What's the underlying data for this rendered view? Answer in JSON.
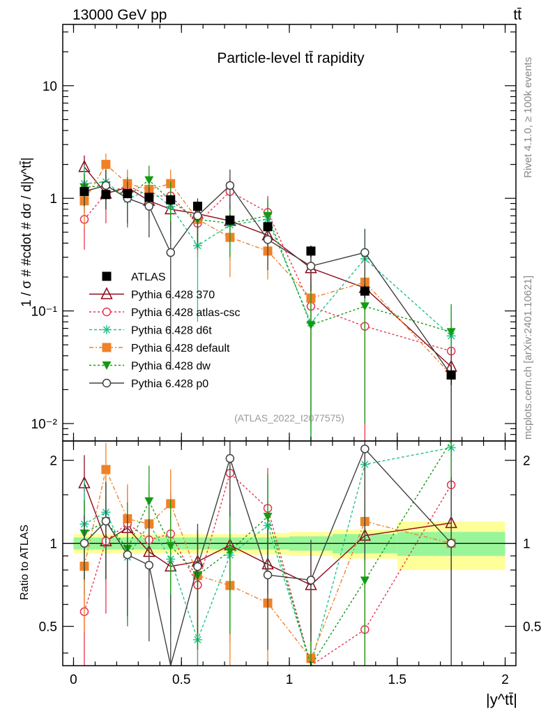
{
  "header": {
    "energy_label": "13000 GeV pp",
    "process_label": "tt̄",
    "rivet_label": "Rivet 4.1.0, ≥ 100k events",
    "source_label": "mcplots.cern.ch [arXiv:2401.10621]"
  },
  "chart_data": {
    "type": "scatter",
    "title": "Particle-level tt̄ rapidity",
    "analysis_label": "(ATLAS_2022_I2077575)",
    "xlabel": "|y^tt̄|",
    "ylabel": "1 / σ # #cdot # dσ / d|y^tt̄|",
    "ratio_ylabel": "Ratio to ATLAS",
    "xlim": [
      -0.05,
      2.05
    ],
    "ylim": [
      0.007,
      35
    ],
    "ratio_ylim": [
      0.36,
      2.35
    ],
    "x_ticks": [
      0,
      0.5,
      1,
      1.5,
      2
    ],
    "x_tick_labels": [
      "0",
      "0.5",
      "1",
      "1.5",
      "2"
    ],
    "y_ticks": [
      0.01,
      0.1,
      1,
      10
    ],
    "y_tick_labels": [
      "10⁻²",
      "10⁻¹",
      "1",
      "10"
    ],
    "ratio_ticks": [
      0.5,
      1,
      2
    ],
    "ratio_tick_labels": [
      "0.5",
      "1",
      "2"
    ],
    "bins": [
      [
        0,
        0.1
      ],
      [
        0.1,
        0.2
      ],
      [
        0.2,
        0.3
      ],
      [
        0.3,
        0.4
      ],
      [
        0.4,
        0.5
      ],
      [
        0.5,
        0.65
      ],
      [
        0.65,
        0.8
      ],
      [
        0.8,
        1.0
      ],
      [
        1.0,
        1.2
      ],
      [
        1.2,
        1.5
      ],
      [
        1.5,
        2.0
      ]
    ],
    "x": [
      0.05,
      0.15,
      0.25,
      0.35,
      0.45,
      0.575,
      0.725,
      0.9,
      1.1,
      1.35,
      1.75
    ],
    "band_stat": [
      0.05,
      0.05,
      0.05,
      0.05,
      0.05,
      0.05,
      0.05,
      0.05,
      0.06,
      0.08,
      0.1
    ],
    "band_total": [
      0.08,
      0.08,
      0.08,
      0.08,
      0.08,
      0.08,
      0.08,
      0.09,
      0.1,
      0.12,
      0.2
    ],
    "series": [
      {
        "name": "ATLAS",
        "color": "#000000",
        "marker": "square-filled",
        "dash": "none",
        "values": [
          1.15,
          1.08,
          1.1,
          1.02,
          0.97,
          0.85,
          0.64,
          0.56,
          0.34,
          0.15,
          0.027
        ],
        "errors": [
          0.1,
          0.1,
          0.1,
          0.1,
          0.1,
          0.08,
          0.06,
          0.05,
          0.04,
          0.02,
          0.005
        ]
      },
      {
        "name": "Pythia 6.428 370",
        "color": "#8b0a1a",
        "marker": "triangle-up-open",
        "dash": "none",
        "values": [
          1.9,
          1.1,
          1.25,
          0.95,
          0.8,
          0.73,
          0.63,
          0.47,
          0.24,
          0.16,
          0.032
        ],
        "errors": [
          0.5,
          0.3,
          0.3,
          0.3,
          0.3,
          0.2,
          0.2,
          0.1,
          0.08,
          0.07,
          0.03
        ]
      },
      {
        "name": "Pythia 6.428 atlas-csc",
        "color": "#e8344f",
        "marker": "circle-open",
        "dash": "3,3",
        "values": [
          0.65,
          1.1,
          1.3,
          1.05,
          1.05,
          0.6,
          1.15,
          0.75,
          0.11,
          0.073,
          0.044
        ],
        "errors": [
          0.3,
          0.5,
          0.45,
          0.4,
          0.45,
          0.3,
          0.35,
          0.3,
          0.1,
          0.07,
          0.04
        ]
      },
      {
        "name": "Pythia 6.428 d6t",
        "color": "#1fc48e",
        "marker": "asterisk",
        "dash": "4,3",
        "values": [
          1.35,
          1.4,
          0.98,
          1.2,
          0.85,
          0.38,
          0.58,
          0.65,
          0.078,
          0.29,
          0.06
        ],
        "errors": [
          0.6,
          0.5,
          0.4,
          0.4,
          0.4,
          0.3,
          0.3,
          0.3,
          0.1,
          0.25,
          0.05
        ]
      },
      {
        "name": "Pythia 6.428 default",
        "color": "#f08127",
        "marker": "square-filled",
        "dash": "6,3,2,3",
        "values": [
          0.95,
          2.0,
          1.35,
          1.2,
          1.35,
          0.65,
          0.45,
          0.34,
          0.13,
          0.18,
          0.027
        ],
        "errors": [
          0.4,
          0.5,
          0.45,
          0.45,
          0.45,
          0.3,
          0.25,
          0.15,
          0.1,
          0.15,
          0.03
        ]
      },
      {
        "name": "Pythia 6.428 dw",
        "color": "#139b13",
        "marker": "triangle-down-filled",
        "dash": "3,3",
        "values": [
          1.25,
          1.3,
          1.05,
          1.45,
          0.95,
          0.65,
          0.6,
          0.7,
          0.075,
          0.11,
          0.065
        ],
        "errors": [
          0.4,
          0.5,
          0.5,
          0.5,
          0.45,
          0.3,
          0.3,
          0.3,
          0.1,
          0.1,
          0.05
        ]
      },
      {
        "name": "Pythia 6.428 p0",
        "color": "#404040",
        "marker": "circle-open",
        "dash": "none",
        "values": [
          1.15,
          1.3,
          1.0,
          0.85,
          0.33,
          0.7,
          1.3,
          0.43,
          0.25,
          0.33,
          0.027
        ],
        "errors": [
          0.3,
          0.5,
          0.4,
          0.4,
          0.3,
          0.3,
          0.5,
          0.2,
          0.1,
          0.2,
          0.02
        ]
      }
    ]
  }
}
